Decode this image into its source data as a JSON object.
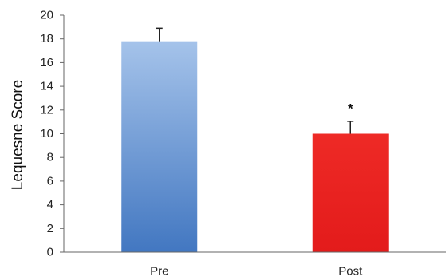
{
  "chart_data": {
    "type": "bar",
    "title": "",
    "xlabel": "",
    "ylabel": "Lequesne Score",
    "ylim": [
      0,
      20
    ],
    "yticks": [
      0,
      2,
      4,
      6,
      8,
      10,
      12,
      14,
      16,
      18,
      20
    ],
    "categories": [
      "Pre",
      "Post"
    ],
    "values": [
      17.8,
      10.0
    ],
    "error_bars": [
      1.1,
      1.05
    ],
    "bar_colors": [
      {
        "top": "#a5c3ea",
        "bottom": "#4277c1"
      },
      {
        "top": "#ee2a26",
        "bottom": "#e31b1b"
      }
    ],
    "annotations": [
      {
        "category": "Post",
        "text": "*"
      }
    ],
    "grid": false
  }
}
